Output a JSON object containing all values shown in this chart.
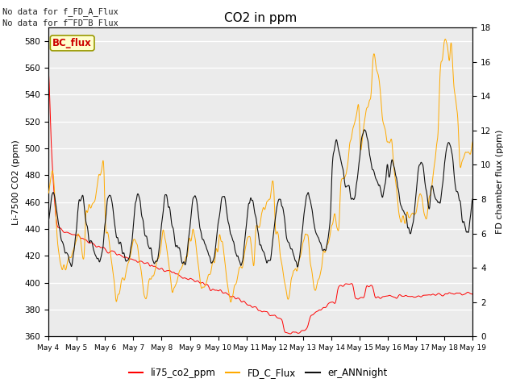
{
  "title": "CO2 in ppm",
  "ylabel_left": "Li-7500 CO2 (ppm)",
  "ylabel_right": "FD chamber flux (ppm)",
  "ylim_left": [
    360,
    590
  ],
  "ylim_right": [
    0,
    18
  ],
  "yticks_left": [
    360,
    380,
    400,
    420,
    440,
    460,
    480,
    500,
    520,
    540,
    560,
    580
  ],
  "yticks_right": [
    0,
    2,
    4,
    6,
    8,
    10,
    12,
    14,
    16,
    18
  ],
  "text_no_data_1": "No data for f_FD_A_Flux",
  "text_no_data_2": "No data for f̲FD̲B_Flux",
  "legend_labels": [
    "li75_co2_ppm",
    "FD_C_Flux",
    "er_ANNnight"
  ],
  "legend_colors": [
    "#ff0000",
    "#ffaa00",
    "#111111"
  ],
  "bc_flux_label": "BC_flux",
  "color_red": "#ff0000",
  "color_orange": "#ffaa00",
  "color_black": "#111111",
  "plot_bg_color": "#ebebeb",
  "grid_color": "#ffffff",
  "n_points": 2000,
  "xtick_labels": [
    "May 4",
    "May 5",
    "May 6",
    "May 7",
    "May 8",
    "May 9",
    "May 10",
    "May 11",
    "May 12",
    "May 13",
    "May 14",
    "May 15",
    "May 16",
    "May 17",
    "May 18",
    "May 19"
  ]
}
